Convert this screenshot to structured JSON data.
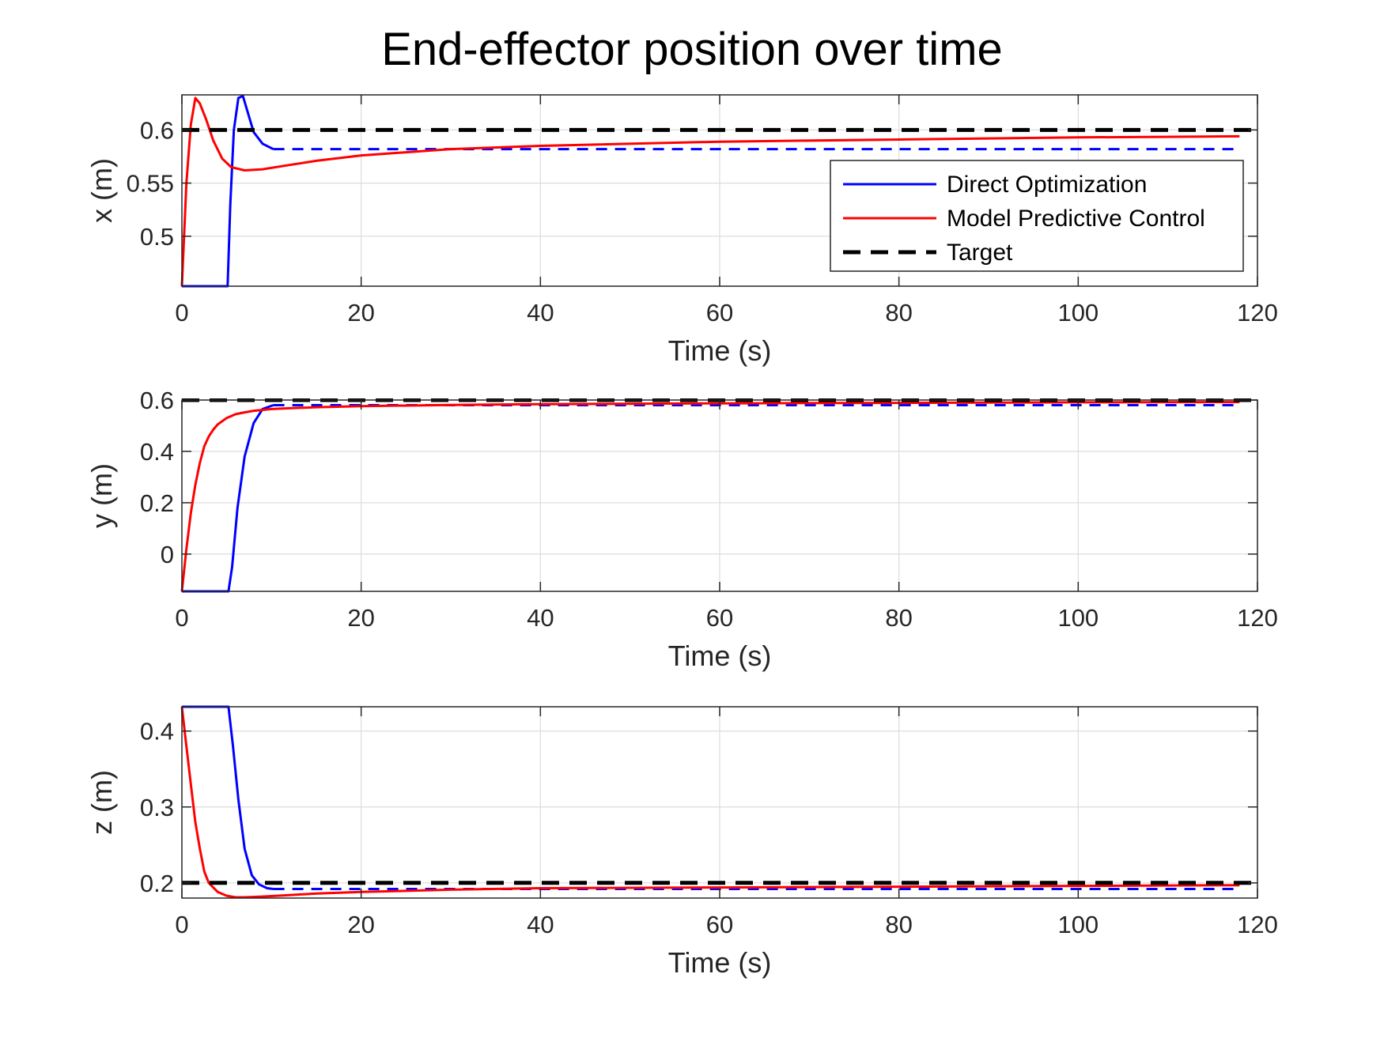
{
  "title": "End-effector position over time",
  "colors": {
    "direct": "#0000ff",
    "mpc": "#ff0000",
    "target": "#000000",
    "grid": "#dcdcdc",
    "axes": "#262626"
  },
  "legend": {
    "placement": "right, inside top panel",
    "entries": [
      "Direct Optimization",
      "Model Predictive Control",
      "Target"
    ]
  },
  "chart_data": [
    {
      "type": "line",
      "ylabel": "x (m)",
      "xlabel": "Time (s)",
      "xlim": [
        0,
        120
      ],
      "ylim": [
        0.453,
        0.633
      ],
      "xticks": [
        0,
        20,
        40,
        60,
        80,
        100,
        120
      ],
      "xtick_labels": [
        "0",
        "20",
        "40",
        "60",
        "80",
        "100",
        "120"
      ],
      "yticks": [
        0.5,
        0.55,
        0.6
      ],
      "ytick_labels": [
        "0.5",
        "0.55",
        "0.6"
      ],
      "grid": true,
      "series": [
        {
          "name": "Direct Optimization",
          "style": "solid",
          "x": [
            0,
            5.1,
            5.4,
            5.8,
            6.3,
            6.8,
            7.4,
            8,
            9,
            10.2
          ],
          "y": [
            0.453,
            0.453,
            0.53,
            0.6,
            0.63,
            0.632,
            0.615,
            0.598,
            0.587,
            0.582
          ]
        },
        {
          "name": "Direct Optimization",
          "style": "dashed",
          "x": [
            10.2,
            118
          ],
          "y": [
            0.582,
            0.582
          ]
        },
        {
          "name": "Model Predictive Control",
          "style": "solid",
          "x": [
            0,
            0.5,
            1,
            1.5,
            2,
            2.7,
            3.5,
            4.5,
            5.5,
            7,
            9,
            12,
            15,
            20,
            30,
            40,
            60,
            80,
            100,
            118
          ],
          "y": [
            0.453,
            0.55,
            0.605,
            0.63,
            0.625,
            0.61,
            0.59,
            0.573,
            0.565,
            0.562,
            0.563,
            0.567,
            0.571,
            0.576,
            0.582,
            0.585,
            0.589,
            0.591,
            0.593,
            0.594
          ]
        },
        {
          "name": "Target",
          "style": "dashed",
          "x": [
            0,
            120
          ],
          "y": [
            0.6,
            0.6
          ]
        }
      ]
    },
    {
      "type": "line",
      "ylabel": "y (m)",
      "xlabel": "Time (s)",
      "xlim": [
        0,
        120
      ],
      "ylim": [
        -0.145,
        0.6
      ],
      "xticks": [
        0,
        20,
        40,
        60,
        80,
        100,
        120
      ],
      "xtick_labels": [
        "0",
        "20",
        "40",
        "60",
        "80",
        "100",
        "120"
      ],
      "yticks": [
        0,
        0.2,
        0.4,
        0.6
      ],
      "ytick_labels": [
        "0",
        "0.2",
        "0.4",
        "0.6"
      ],
      "grid": true,
      "series": [
        {
          "name": "Direct Optimization",
          "style": "solid",
          "x": [
            0,
            5.2,
            5.6,
            6.2,
            7,
            8,
            9,
            10.2
          ],
          "y": [
            -0.145,
            -0.145,
            -0.05,
            0.18,
            0.38,
            0.51,
            0.565,
            0.58
          ]
        },
        {
          "name": "Direct Optimization",
          "style": "dashed",
          "x": [
            10.2,
            118
          ],
          "y": [
            0.58,
            0.58
          ]
        },
        {
          "name": "Model Predictive Control",
          "style": "solid",
          "x": [
            0,
            0.5,
            1,
            1.5,
            2,
            2.5,
            3,
            3.5,
            4,
            5,
            6,
            7,
            8,
            10,
            12,
            15,
            20,
            30,
            40,
            60,
            80,
            100,
            118
          ],
          "y": [
            -0.145,
            0.02,
            0.16,
            0.27,
            0.355,
            0.42,
            0.458,
            0.485,
            0.505,
            0.53,
            0.545,
            0.552,
            0.558,
            0.565,
            0.568,
            0.572,
            0.576,
            0.581,
            0.584,
            0.587,
            0.589,
            0.591,
            0.592
          ]
        },
        {
          "name": "Target",
          "style": "dashed",
          "x": [
            0,
            120
          ],
          "y": [
            0.6,
            0.6
          ]
        }
      ]
    },
    {
      "type": "line",
      "ylabel": "z (m)",
      "xlabel": "Time (s)",
      "xlim": [
        0,
        120
      ],
      "ylim": [
        0.18,
        0.432
      ],
      "xticks": [
        0,
        20,
        40,
        60,
        80,
        100,
        120
      ],
      "xtick_labels": [
        "0",
        "20",
        "40",
        "60",
        "80",
        "100",
        "120"
      ],
      "yticks": [
        0.2,
        0.3,
        0.4
      ],
      "ytick_labels": [
        "0.2",
        "0.3",
        "0.4"
      ],
      "grid": true,
      "series": [
        {
          "name": "Direct Optimization",
          "style": "solid",
          "x": [
            0,
            5.2,
            5.7,
            6.3,
            7,
            7.8,
            8.6,
            9.5,
            10.2
          ],
          "y": [
            0.432,
            0.432,
            0.38,
            0.31,
            0.245,
            0.21,
            0.198,
            0.193,
            0.192
          ]
        },
        {
          "name": "Direct Optimization",
          "style": "dashed",
          "x": [
            10.2,
            118
          ],
          "y": [
            0.192,
            0.192
          ]
        },
        {
          "name": "Model Predictive Control",
          "style": "solid",
          "x": [
            0,
            0.5,
            1,
            1.5,
            2,
            2.5,
            3,
            4,
            5,
            6,
            7,
            9,
            12,
            15,
            20,
            30,
            40,
            60,
            80,
            100,
            118
          ],
          "y": [
            0.432,
            0.38,
            0.33,
            0.28,
            0.245,
            0.215,
            0.2,
            0.188,
            0.183,
            0.181,
            0.181,
            0.182,
            0.184,
            0.186,
            0.188,
            0.191,
            0.193,
            0.194,
            0.195,
            0.196,
            0.197
          ]
        },
        {
          "name": "Target",
          "style": "dashed",
          "x": [
            0,
            120
          ],
          "y": [
            0.2,
            0.2
          ]
        }
      ]
    }
  ]
}
